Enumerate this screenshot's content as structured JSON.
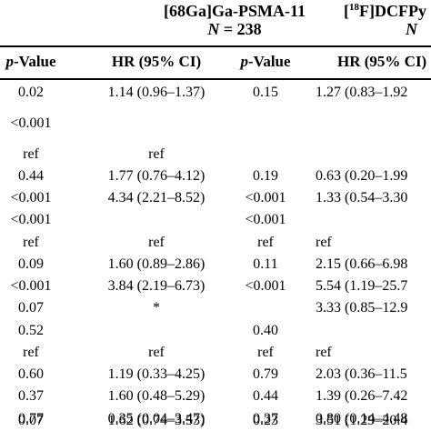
{
  "groups": [
    {
      "name_pre": "[68Ga]Ga-PSMA-11",
      "name_sup": "",
      "name_post": "",
      "n_label": "N",
      "n_value": "= 238"
    },
    {
      "name_pre": "[",
      "name_sup": "18",
      "name_post": "F]DCFPy",
      "n_label": "N",
      "n_value": ""
    }
  ],
  "columns": [
    {
      "italic": "p",
      "rest": "-Value"
    },
    {
      "italic": "",
      "rest": "HR (95% CI)"
    },
    {
      "italic": "p",
      "rest": "-Value"
    },
    {
      "italic": "",
      "rest": "HR (95% CI)"
    }
  ],
  "rows": [
    [
      "0.02",
      "1.14 (0.96–1.37)",
      "0.15",
      "1.27 (0.83–1.92"
    ],
    [
      "<0.001",
      "",
      "",
      ""
    ],
    [
      "ref",
      "ref",
      "",
      ""
    ],
    [
      "0.44",
      "1.77 (0.76–4.12)",
      "0.19",
      "0.63 (0.20–1.99"
    ],
    [
      "<0.001",
      "4.34 (2.21–8.52)",
      "<0.001",
      "1.33 (0.54–3.30"
    ],
    [
      "<0.001",
      "",
      "<0.001",
      ""
    ],
    [
      "ref",
      "ref",
      "ref",
      "ref"
    ],
    [
      "0.09",
      "1.60 (0.89–2.86)",
      "0.11",
      "2.15 (0.66–6.98"
    ],
    [
      "<0.001",
      "3.84 (2.19–6.73)",
      "<0.001",
      "5.54 (1.19–25.7"
    ],
    [
      "0.07",
      "*",
      "",
      "3.33 (0.85–12.9"
    ],
    [
      "0.52",
      "",
      "0.40",
      ""
    ],
    [
      "ref",
      "ref",
      "ref",
      "ref"
    ],
    [
      "0.60",
      "1.19 (0.33–4.25)",
      "0.79",
      "2.03 (0.36–11.5"
    ],
    [
      "0.37",
      "1.60 (0.48–5.29)",
      "0.44",
      "1.39 (0.26–7.42"
    ],
    [
      "0.77",
      "0.35 (0.04–3.47)",
      "0.37",
      "0.80 (0.14–4.48"
    ],
    [
      "0.07",
      "1.62 (0.74–3.53)",
      "0.23",
      "3.51 (1.29–20.4"
    ]
  ]
}
